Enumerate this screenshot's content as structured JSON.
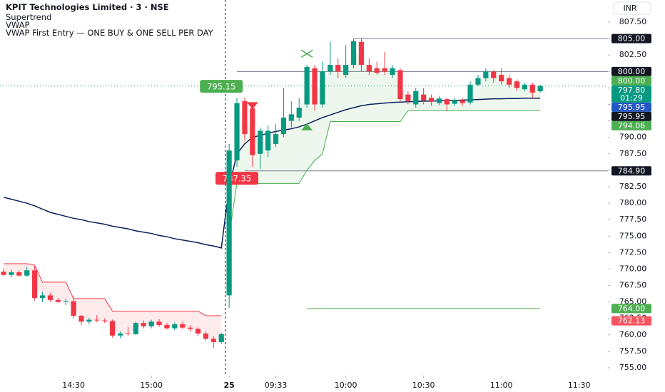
{
  "chart_data": {
    "type": "candlestick",
    "title": "KPIT Technologies Limited · 3 · NSE",
    "indicators": [
      "Supertrend",
      "VWAP",
      "VWAP First Entry — ONE BUY & ONE SELL PER DAY"
    ],
    "currency": "INR",
    "xlim": [
      -0.46,
      77.7
    ],
    "xticks": [
      {
        "value": 9,
        "label": "14:30"
      },
      {
        "value": 19,
        "label": "15:00"
      },
      {
        "value": 29,
        "label": "25"
      },
      {
        "value": 35,
        "label": "09:33"
      },
      {
        "value": 44,
        "label": "10:00"
      },
      {
        "value": 54,
        "label": "10:30"
      },
      {
        "value": 64,
        "label": "11:00"
      },
      {
        "value": 74,
        "label": "11:30"
      }
    ],
    "ylim": [
      753.81,
      810.86
    ],
    "yticks": [
      {
        "value": 755,
        "label": "755.00"
      },
      {
        "value": 757.5,
        "label": "757.50"
      },
      {
        "value": 760,
        "label": "760.00"
      },
      {
        "value": 762.5,
        "label": "762.50"
      },
      {
        "value": 765,
        "label": "765.00"
      },
      {
        "value": 767.5,
        "label": "767.50"
      },
      {
        "value": 770,
        "label": "770.00"
      },
      {
        "value": 772.5,
        "label": "772.50"
      },
      {
        "value": 775,
        "label": "775.00"
      },
      {
        "value": 777.5,
        "label": "777.50"
      },
      {
        "value": 780,
        "label": "780.00"
      },
      {
        "value": 782.5,
        "label": "782.50"
      },
      {
        "value": 785,
        "label": "785.00"
      },
      {
        "value": 787.5,
        "label": "787.50"
      },
      {
        "value": 790,
        "label": "790.00"
      },
      {
        "value": 792.5,
        "label": "792.50"
      },
      {
        "value": 795,
        "label": "795.00"
      },
      {
        "value": 797.5,
        "label": "797.50"
      },
      {
        "value": 800,
        "label": "800.00"
      },
      {
        "value": 802.5,
        "label": "802.50"
      },
      {
        "value": 805,
        "label": "805.00"
      },
      {
        "value": 807.5,
        "label": "807.50"
      }
    ],
    "grid": false,
    "up_color": "#089981",
    "down_color": "#f23645",
    "open": [
      769.6,
      769.1,
      769.5,
      769.0,
      769.8,
      765.6,
      766.0,
      765.3,
      765.0,
      765.1,
      762.9,
      762.0,
      762.3,
      762.2,
      762.1,
      759.9,
      760.2,
      760.1,
      761.8,
      761.3,
      762.0,
      761.5,
      761.0,
      761.6,
      761.1,
      760.9,
      760.2,
      759.4,
      758.9,
      766.0,
      786.5,
      795.5,
      794.4,
      787.5,
      788.0,
      789.0,
      790.5,
      792.5,
      793.0,
      795.0,
      800.5,
      795.0,
      800.0,
      801.0,
      799.5,
      801.0,
      804.5,
      801.0,
      800.5,
      800.5,
      799.5,
      800.2,
      796.5,
      795.0,
      796.5,
      796.0,
      795.2,
      795.8,
      795.1,
      795.6,
      795.3,
      798.0,
      799.0,
      800.0,
      799.5,
      799.0,
      798.5,
      797.3,
      798.0,
      797.0
    ],
    "high": [
      770.1,
      769.9,
      769.8,
      770.3,
      770.5,
      766.5,
      766.4,
      765.6,
      765.5,
      765.8,
      763.0,
      762.6,
      763.0,
      762.5,
      762.3,
      760.5,
      761.2,
      762.0,
      762.2,
      762.3,
      762.4,
      761.8,
      761.9,
      762.0,
      761.5,
      761.2,
      760.5,
      759.8,
      760.3,
      789.0,
      796.0,
      796.0,
      795.0,
      791.5,
      791.8,
      792.0,
      797.5,
      795.5,
      796.0,
      801.0,
      801.0,
      801.5,
      804.5,
      802.0,
      804.0,
      805.0,
      805.0,
      802.0,
      801.5,
      803.0,
      801.0,
      800.5,
      797.0,
      797.5,
      797.5,
      796.5,
      796.3,
      796.0,
      796.0,
      796.0,
      798.5,
      799.5,
      800.5,
      800.2,
      800.5,
      799.5,
      798.8,
      798.3,
      798.3,
      798.0
    ],
    "low": [
      768.9,
      768.7,
      768.8,
      768.8,
      765.2,
      765.0,
      765.0,
      764.8,
      764.5,
      762.5,
      761.5,
      761.6,
      761.9,
      761.8,
      759.6,
      759.5,
      759.8,
      760.0,
      761.0,
      761.0,
      761.2,
      760.8,
      760.7,
      760.9,
      760.5,
      759.8,
      759.1,
      758.0,
      758.6,
      764.1,
      785.5,
      789.5,
      785.5,
      785.2,
      787.0,
      788.5,
      790.0,
      791.5,
      792.5,
      794.5,
      794.0,
      794.5,
      799.5,
      799.0,
      799.0,
      800.5,
      800.0,
      799.5,
      799.5,
      799.5,
      799.0,
      795.5,
      795.0,
      794.5,
      795.0,
      794.8,
      794.9,
      794.0,
      794.8,
      794.8,
      795.0,
      797.8,
      798.5,
      798.3,
      798.0,
      797.5,
      797.0,
      797.0,
      796.0,
      796.8
    ],
    "close": [
      769.1,
      769.5,
      769.0,
      769.8,
      765.6,
      766.0,
      765.3,
      765.0,
      765.1,
      762.9,
      762.0,
      762.3,
      762.2,
      762.1,
      759.9,
      760.2,
      760.1,
      761.8,
      761.3,
      762.0,
      761.5,
      761.0,
      761.6,
      761.1,
      760.9,
      760.2,
      759.4,
      758.9,
      760.1,
      788.0,
      795.2,
      790.5,
      787.3,
      791.0,
      791.0,
      790.5,
      793.0,
      793.5,
      794.5,
      800.7,
      795.0,
      800.0,
      801.0,
      800.0,
      801.0,
      804.6,
      801.0,
      800.0,
      799.8,
      800.0,
      800.5,
      795.8,
      795.5,
      797.0,
      795.6,
      795.4,
      795.9,
      795.0,
      795.6,
      795.2,
      798.0,
      799.0,
      800.0,
      799.0,
      798.5,
      798.0,
      797.5,
      798.0,
      796.8,
      797.8
    ],
    "vwap": {
      "name": "VWAP",
      "color": "#0c1f5a",
      "values": [
        780.9,
        780.6,
        780.3,
        780.0,
        779.6,
        779.1,
        778.6,
        778.3,
        778.0,
        777.7,
        777.5,
        777.2,
        777.0,
        776.8,
        776.5,
        776.3,
        776.1,
        775.8,
        775.6,
        775.4,
        775.1,
        774.9,
        774.6,
        774.4,
        774.2,
        774.0,
        773.7,
        773.5,
        773.2,
        782.5,
        787.5,
        789.0,
        790.0,
        790.3,
        790.6,
        790.9,
        791.1,
        791.3,
        791.6,
        792.0,
        792.5,
        793.0,
        793.4,
        793.8,
        794.2,
        794.5,
        794.8,
        795.0,
        795.1,
        795.2,
        795.3,
        795.35,
        795.4,
        795.45,
        795.5,
        795.5,
        795.55,
        795.55,
        795.6,
        795.65,
        795.7,
        795.75,
        795.8,
        795.85,
        795.85,
        795.9,
        795.9,
        795.95,
        795.95,
        795.95
      ]
    },
    "supertrend": {
      "name": "Supertrend",
      "up_color": "#4caf50",
      "down_color": "#f23645",
      "values": [
        770.8,
        770.8,
        770.8,
        770.8,
        770.6,
        768.0,
        768.0,
        768.0,
        768.0,
        765.5,
        765.5,
        765.5,
        765.5,
        765.5,
        763.6,
        763.6,
        763.6,
        763.6,
        763.6,
        763.6,
        763.6,
        763.6,
        763.6,
        763.6,
        763.6,
        763.6,
        762.9,
        762.9,
        762.9,
        775.0,
        783.0,
        783.0,
        783.0,
        783.0,
        783.0,
        783.0,
        783.0,
        783.0,
        783.0,
        785.0,
        786.5,
        787.5,
        792.4,
        792.4,
        792.4,
        792.4,
        792.4,
        792.4,
        792.4,
        792.4,
        792.4,
        792.4,
        794.06,
        794.06,
        794.06,
        794.06,
        794.06,
        794.06,
        794.06,
        794.06,
        794.06,
        794.06,
        794.06,
        794.06,
        794.06,
        794.06,
        794.06,
        794.06,
        794.06,
        794.06
      ]
    },
    "levels": [
      {
        "value": 805,
        "start": 45,
        "color": "#787b86"
      },
      {
        "value": 800,
        "start": 30,
        "color": "#787b86"
      },
      {
        "value": 784.9,
        "start": 31,
        "color": "#787b86"
      },
      {
        "value": 764,
        "start": 39,
        "end": 69,
        "color": "#4caf50"
      }
    ],
    "trade_labels": [
      {
        "value": 795.15,
        "label": "795.15",
        "x": 28,
        "color": "#4caf50",
        "side": "above"
      },
      {
        "value": 787.35,
        "label": "787.35",
        "x": 30,
        "color": "#f23645",
        "side": "below"
      }
    ],
    "signals": [
      {
        "shape": "cross",
        "x": 39,
        "value": 802.7,
        "color": "#4caf50"
      },
      {
        "shape": "triangle-down",
        "x": 32,
        "value": 794.8,
        "color": "#f23645"
      },
      {
        "shape": "triangle-up",
        "x": 39,
        "value": 791.6,
        "color": "#4caf50"
      }
    ],
    "price_tags": [
      {
        "value": 805,
        "label": "805.00",
        "color": "#131722"
      },
      {
        "value": 800,
        "label": "800.00",
        "color": "#131722"
      },
      {
        "value": 800,
        "label": "800.00",
        "color": "#4caf50"
      },
      {
        "value": 797.8,
        "label": "797.80",
        "color": "#089981",
        "countdown": "01:29"
      },
      {
        "value": 795.95,
        "label": "795.95",
        "color": "#2457c5"
      },
      {
        "value": 795.95,
        "label": "795.95",
        "color": "#131722"
      },
      {
        "value": 794.06,
        "label": "794.06",
        "color": "#4caf50"
      },
      {
        "value": 784.9,
        "label": "784.90",
        "color": "#131722"
      },
      {
        "value": 764,
        "label": "764.00",
        "color": "#4caf50"
      },
      {
        "value": 762.13,
        "label": "762.13",
        "color": "#f7525f"
      }
    ]
  }
}
